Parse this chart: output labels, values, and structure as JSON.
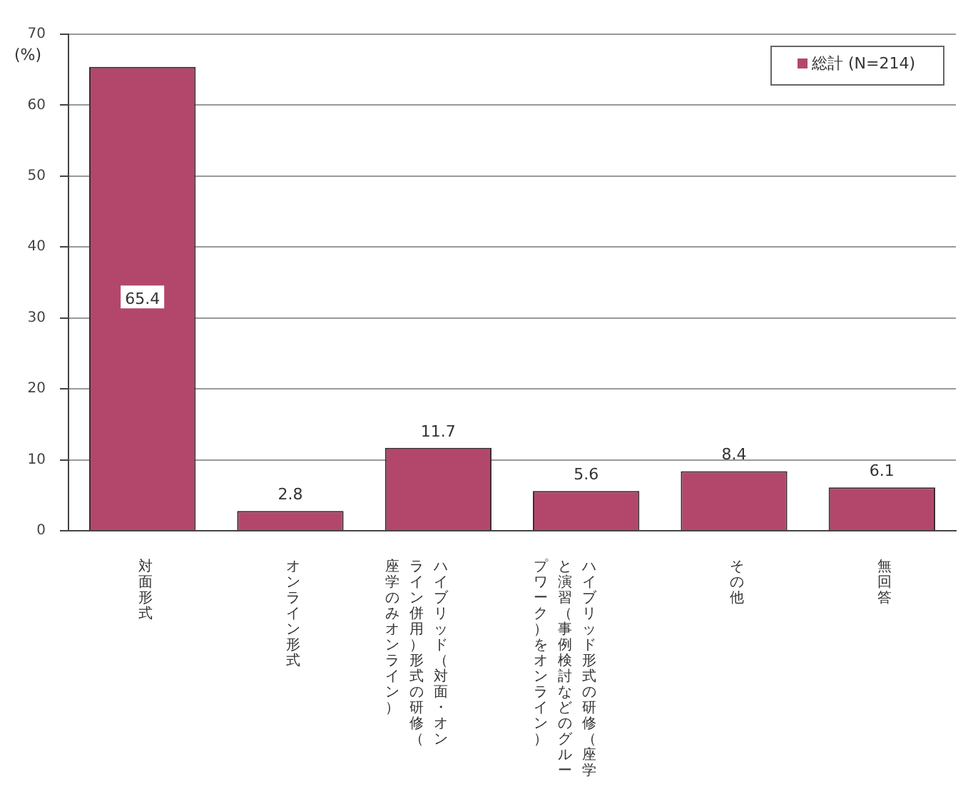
{
  "chart_data": {
    "type": "bar",
    "ylabel": "(%)",
    "categories": [
      "対面形式",
      "オンライン形式",
      "ハイブリッド（対面・オンライン併用）形式の研修（座学のみオンライン）",
      "ハイブリッド形式の研修（座学と演習（事例検討などのグループワーク）をオンライン）",
      "その他",
      "無回答"
    ],
    "series": [
      {
        "name": "総計 (N=214)",
        "color": "#b3476b",
        "values": [
          65.4,
          2.8,
          11.7,
          5.6,
          8.4,
          6.1
        ]
      }
    ],
    "ylim": [
      0,
      70
    ],
    "yticks": [
      0,
      10,
      20,
      30,
      40,
      50,
      60,
      70
    ],
    "grid": "y",
    "legend": "top right",
    "data_labels": true
  }
}
